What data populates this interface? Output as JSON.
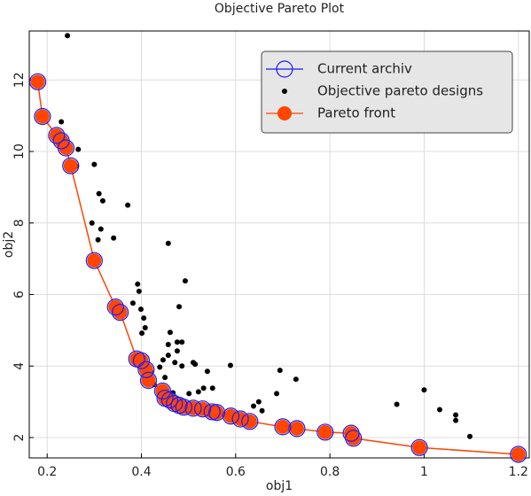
{
  "chart_data": {
    "type": "scatter",
    "title": "Objective Pareto Plot",
    "x_label": "obj1",
    "y_label": "obj2",
    "xlim": [
      0.162,
      1.223
    ],
    "ylim": [
      1.43,
      13.37
    ],
    "xticks": [
      0.2,
      0.4,
      0.6,
      0.8,
      1,
      1.2
    ],
    "yticks": [
      2,
      4,
      6,
      8,
      10,
      12
    ],
    "grid": true,
    "legend": "upper right",
    "series": [
      {
        "name": "Current archiv",
        "color": "#1a1aff",
        "marker": "open-circle",
        "x": [
          0.18,
          0.19,
          0.22,
          0.23,
          0.24,
          0.25,
          0.3,
          0.345,
          0.355,
          0.39,
          0.4,
          0.41,
          0.415,
          0.445,
          0.45,
          0.46,
          0.47,
          0.48,
          0.49,
          0.51,
          0.53,
          0.55,
          0.56,
          0.59,
          0.61,
          0.63,
          0.7,
          0.73,
          0.79,
          0.845,
          0.85,
          0.99,
          1.2
        ],
        "values": [
          11.95,
          10.98,
          10.45,
          10.3,
          10.1,
          9.6,
          6.95,
          5.65,
          5.5,
          4.2,
          4.15,
          3.9,
          3.6,
          3.3,
          3.1,
          3.05,
          2.95,
          2.9,
          2.85,
          2.82,
          2.8,
          2.72,
          2.7,
          2.6,
          2.52,
          2.45,
          2.3,
          2.25,
          2.15,
          2.12,
          1.98,
          1.72,
          1.53
        ]
      },
      {
        "name": "Objective pareto designs",
        "color": "#000000",
        "marker": "dot",
        "x": [
          0.243,
          0.23,
          0.266,
          0.262,
          0.3,
          0.31,
          0.318,
          0.314,
          0.295,
          0.308,
          0.341,
          0.371,
          0.392,
          0.395,
          0.382,
          0.399,
          0.405,
          0.408,
          0.401,
          0.457,
          0.493,
          0.48,
          0.461,
          0.476,
          0.486,
          0.457,
          0.476,
          0.446,
          0.457,
          0.439,
          0.471,
          0.486,
          0.514,
          0.51,
          0.54,
          0.589,
          0.532,
          0.551,
          0.521,
          0.501,
          0.467,
          0.694,
          0.728,
          0.638,
          0.649,
          0.656,
          0.687,
          0.639,
          0.942,
          1.0,
          1.033,
          1.067,
          1.067,
          1.097,
          0.45,
          0.42,
          0.427
        ],
        "values": [
          13.24,
          10.83,
          10.06,
          9.59,
          9.64,
          8.82,
          8.62,
          7.83,
          8.0,
          7.53,
          7.58,
          8.5,
          6.29,
          6.09,
          5.76,
          5.59,
          5.34,
          5.07,
          4.92,
          7.43,
          6.38,
          5.66,
          4.94,
          4.67,
          4.67,
          4.6,
          4.42,
          4.17,
          4.3,
          3.97,
          4.1,
          4.0,
          4.05,
          4.1,
          3.85,
          4.02,
          3.38,
          3.38,
          3.28,
          3.23,
          3.25,
          3.88,
          3.63,
          2.88,
          3.0,
          2.75,
          3.23,
          2.45,
          2.93,
          3.33,
          2.78,
          2.63,
          2.48,
          2.03,
          3.68,
          3.85,
          3.48
        ]
      },
      {
        "name": "Pareto front",
        "color": "#ff4500",
        "marker": "filled-circle",
        "line": true,
        "x": [
          0.18,
          0.19,
          0.22,
          0.23,
          0.24,
          0.25,
          0.3,
          0.345,
          0.355,
          0.39,
          0.4,
          0.41,
          0.415,
          0.445,
          0.45,
          0.46,
          0.47,
          0.48,
          0.49,
          0.51,
          0.53,
          0.55,
          0.56,
          0.59,
          0.61,
          0.63,
          0.7,
          0.73,
          0.79,
          0.845,
          0.85,
          0.99,
          1.2
        ],
        "values": [
          11.95,
          10.98,
          10.45,
          10.3,
          10.1,
          9.6,
          6.95,
          5.65,
          5.5,
          4.2,
          4.15,
          3.9,
          3.6,
          3.3,
          3.1,
          3.05,
          2.95,
          2.9,
          2.85,
          2.82,
          2.8,
          2.72,
          2.7,
          2.6,
          2.52,
          2.45,
          2.3,
          2.25,
          2.15,
          2.12,
          1.98,
          1.72,
          1.53
        ]
      }
    ]
  }
}
